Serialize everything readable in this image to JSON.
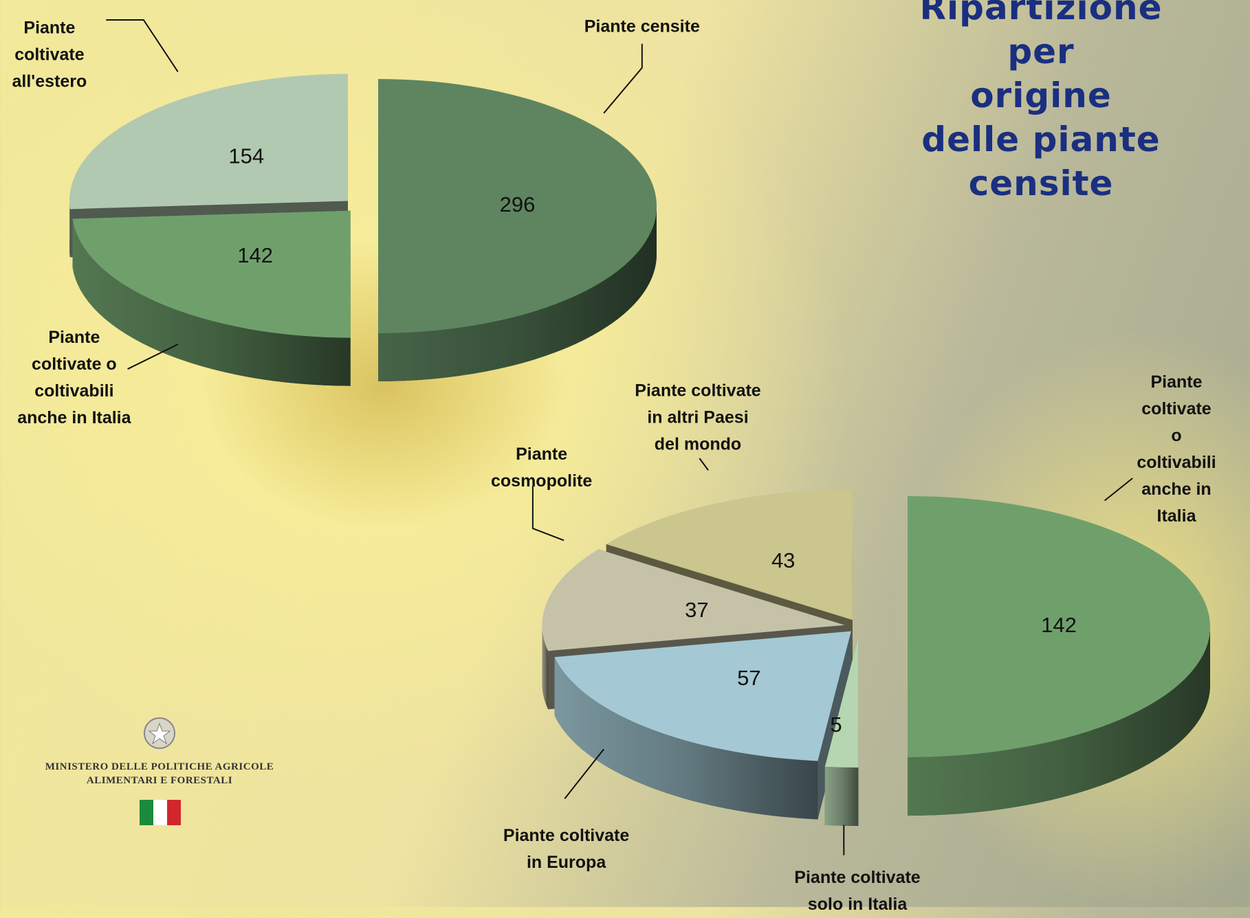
{
  "title": "Ripartizione per\norigine delle piante\ncensite",
  "logo_text": [
    "MINISTERO DELLE POLITICHE AGRICOLE",
    "ALIMENTARI E FORESTALI"
  ],
  "chart_data": [
    {
      "type": "pie",
      "categories": [
        "Piante censite",
        "Piante\ncoltivate o\ncoltivabili\nanche in Italia",
        "Piante\ncoltivate\nall'estero"
      ],
      "values": [
        296,
        142,
        154
      ],
      "colors": [
        "#5e8560",
        "#6fa06c",
        "#b1c9b0"
      ]
    },
    {
      "type": "pie",
      "categories": [
        "Piante coltivate\no coltivabili\nanche in Italia",
        "Piante coltivate\nsolo in Italia",
        "Piante coltivate\nin Europa",
        "Piante\ncosmopolite",
        "Piante coltivate\nin altri Paesi\ndel mondo"
      ],
      "values": [
        142,
        5,
        57,
        37,
        43
      ],
      "colors": [
        "#6fa06c",
        "#b5d6b0",
        "#a4c9d4",
        "#c6c2a8",
        "#cbc58e"
      ]
    }
  ]
}
